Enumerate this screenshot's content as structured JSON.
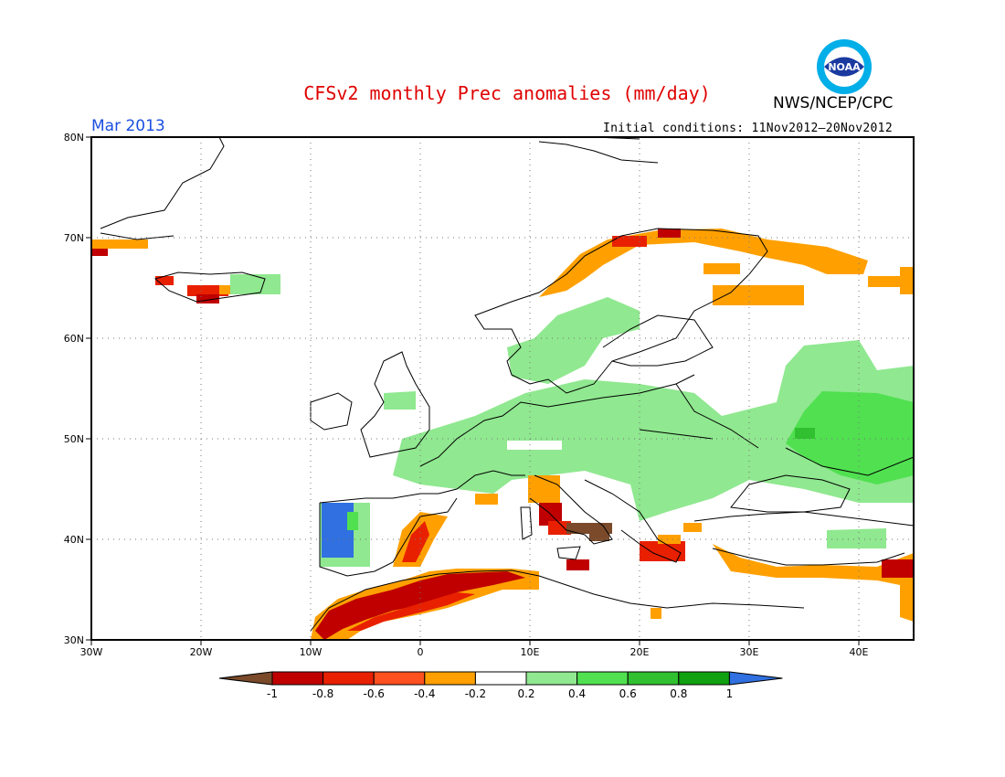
{
  "header": {
    "title": "CFSv2 monthly Prec anomalies (mm/day)",
    "organization": "NWS/NCEP/CPC",
    "month": "Mar 2013",
    "initial_conditions": "Initial conditions: 11Nov2012–20Nov2012",
    "logo_text": "NOAA"
  },
  "map": {
    "extent": {
      "lon": [
        -30,
        45
      ],
      "lat": [
        30,
        80
      ]
    },
    "lat_labels": [
      "80N",
      "70N",
      "60N",
      "50N",
      "40N",
      "30N"
    ],
    "lon_labels": [
      "30W",
      "20W",
      "10W",
      "0",
      "10E",
      "20E",
      "30E",
      "40E"
    ],
    "grid": "dotted"
  },
  "legend": {
    "units": "mm/day",
    "ticks": [
      "-1",
      "-0.8",
      "-0.6",
      "-0.4",
      "-0.2",
      "0.2",
      "0.4",
      "0.6",
      "0.8",
      "1"
    ],
    "colors": [
      "#7a4a2a",
      "#c00000",
      "#e82000",
      "#ff5020",
      "#ffa000",
      "#ffffff",
      "#90e890",
      "#50e050",
      "#30c030",
      "#10a010",
      "#3070e0"
    ]
  }
}
